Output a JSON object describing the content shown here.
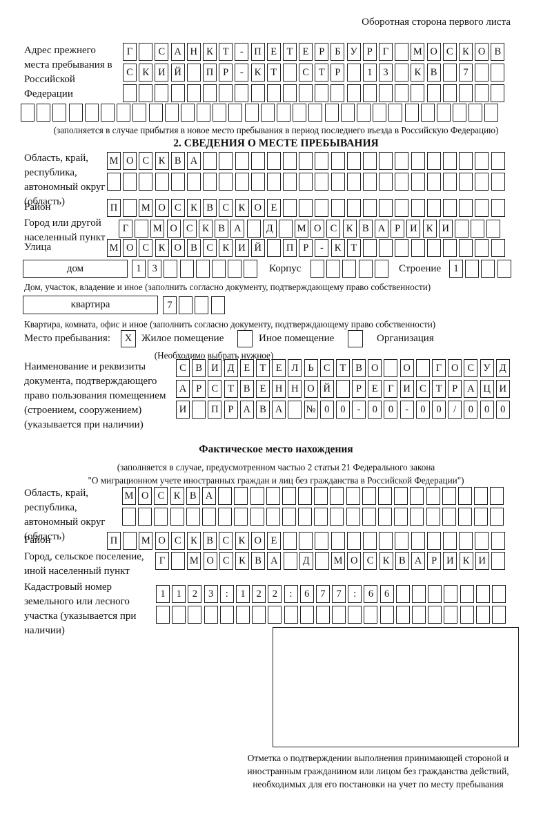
{
  "header": {
    "note": "Оборотная сторона первого листа"
  },
  "prev_address": {
    "label": "Адрес прежнего места пребывания в Российской Федерации",
    "row1": {
      "chars": "Г САНКТ-ПЕТЕРБУРГ МОСКОВ",
      "count": 24
    },
    "row2": {
      "chars": "СКИЙ ПР-КТ СТР 13 КВ 7",
      "count": 24
    },
    "row3": {
      "chars": "",
      "count": 24
    },
    "row4": {
      "chars": "",
      "count": 30
    },
    "note": "(заполняется в случае прибытия в новое место пребывания в период последнего въезда в Российскую Федерацию)"
  },
  "section2": {
    "title": "2. СВЕДЕНИЯ О МЕСТЕ ПРЕБЫВАНИЯ",
    "region": {
      "label": "Область, край, республика, автономный округ (область)",
      "row1": {
        "chars": "МОСКВА",
        "count": 25
      },
      "row2": {
        "chars": "",
        "count": 25
      }
    },
    "district": {
      "label": "Район",
      "row": {
        "chars": "П МОСКВСКОЕ",
        "count": 25
      }
    },
    "city": {
      "label": "Город или другой населенный пункт",
      "row": {
        "chars": "Г МОСКВА Д МОСКВАРИКИ",
        "count": 24
      }
    },
    "street": {
      "label": "Улица",
      "row": {
        "chars": "МОСКОВСКИЙ ПР-КТ",
        "count": 25
      }
    },
    "house": {
      "box_label": "дом",
      "cells": {
        "chars": "13",
        "count": 8
      },
      "korpus_label": "Корпус",
      "korpus_cells": {
        "chars": "",
        "count": 5
      },
      "stroenie_label": "Строение",
      "stroenie_cells": {
        "chars": "1",
        "count": 4
      },
      "note": "Дом, участок, владение и иное (заполнить согласно документу, подтверждающему право собственности)"
    },
    "apartment": {
      "box_label": "квартира",
      "cells": {
        "chars": "7",
        "count": 4
      },
      "note": "Квартира, комната, офис и иное (заполнить согласно документу, подтверждающему право собственности)"
    },
    "stay_type": {
      "label": "Место пребывания:",
      "options": [
        {
          "label": "Жилое помещение",
          "box": {
            "chars": "X",
            "count": 1
          }
        },
        {
          "label": "Иное помещение",
          "box": {
            "chars": "",
            "count": 1
          }
        },
        {
          "label": "Организация",
          "box": {
            "chars": "",
            "count": 1
          }
        }
      ],
      "note": "(Необходимо выбрать нужное)"
    },
    "document": {
      "label": "Наименование и реквизиты документа, подтверждающего право пользования помещением (строением, сооружением) (указывается при наличии)",
      "row1": {
        "chars": "СВИДЕТЕЛЬСТВО О ГОСУД",
        "count": 21
      },
      "row2": {
        "chars": "АРСТВЕННОЙ РЕГИСТРАЦИ",
        "count": 21
      },
      "row3": {
        "chars": "И ПРАВА №00-00-00/000",
        "count": 21
      }
    }
  },
  "actual_location": {
    "title": "Фактическое место нахождения",
    "note1": "(заполняется в случае, предусмотренном частью 2 статьи 21 Федерального закона",
    "note2": "\"О миграционном учете иностранных граждан и лиц без гражданства в Российской Федерации\")",
    "region": {
      "label": "Область, край, республика, автономный округ (область)",
      "row1": {
        "chars": "МОСКВА",
        "count": 24
      },
      "row2": {
        "chars": "",
        "count": 24
      }
    },
    "district": {
      "label": "Район",
      "row": {
        "chars": "П МОСКВСКОЕ",
        "count": 25
      }
    },
    "city": {
      "label": "Город, сельское поселение, иной населенный пункт",
      "row": {
        "chars": "Г МОСКВА Д МОСКВАРИКИ",
        "count": 22
      }
    },
    "cadastral": {
      "label": "Кадастровый номер земельного или лесного участка (указывается при наличии)",
      "row1": {
        "chars": "1123:122:677:66",
        "count": 22
      },
      "row2": {
        "chars": "",
        "count": 22
      }
    },
    "stamp_note": "Отметка о подтверждении выполнения принимающей стороной и иностранным гражданином или лицом без гражданства действий, необходимых для его постановки на учет по месту пребывания"
  }
}
